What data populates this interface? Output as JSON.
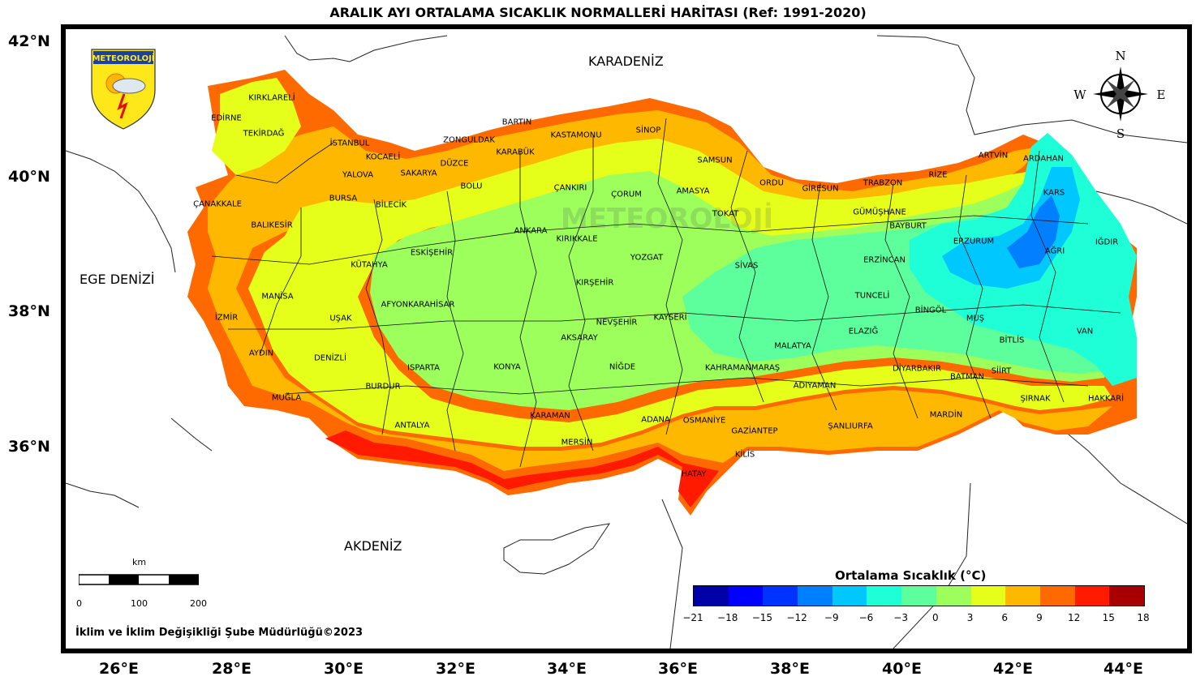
{
  "title": "ARALIK AYI ORTALAMA SICAKLIK NORMALLERİ HARİTASI (Ref: 1991-2020)",
  "logo_text": "METEOROLOJİ",
  "watermark_text": "METEOROLOJİ",
  "compass": {
    "n": "N",
    "s": "S",
    "e": "E",
    "w": "W"
  },
  "latitudes": [
    "42°N",
    "40°N",
    "38°N",
    "36°N"
  ],
  "longitudes": [
    "26°E",
    "28°E",
    "30°E",
    "32°E",
    "34°E",
    "36°E",
    "38°E",
    "40°E",
    "42°E",
    "44°E"
  ],
  "seas": {
    "black_sea": "KARADENİZ",
    "aegean": "EGE DENİZİ",
    "mediterranean": "AKDENİZ"
  },
  "provinces": [
    "KIRKLARELİ",
    "EDİRNE",
    "TEKİRDAĞ",
    "İSTANBUL",
    "KOCAELİ",
    "YALOVA",
    "SAKARYA",
    "ÇANAKKALE",
    "BURSA",
    "BİLECİK",
    "BALIKESİR",
    "ZONGULDAK",
    "BARTIN",
    "KARABÜK",
    "DÜZCE",
    "BOLU",
    "KASTAMONU",
    "SİNOP",
    "ÇANKIRI",
    "ÇORUM",
    "SAMSUN",
    "AMASYA",
    "ORDU",
    "GİRESUN",
    "TOKAT",
    "TRABZON",
    "RİZE",
    "ARTVİN",
    "ARDAHAN",
    "KARS",
    "GÜMÜŞHANE",
    "BAYBURT",
    "ERZURUM",
    "IĞDIR",
    "AĞRI",
    "ERZİNCAN",
    "SİVAS",
    "YOZGAT",
    "KIRIKKALE",
    "ANKARA",
    "ESKİŞEHİR",
    "KÜTAHYA",
    "MANİSA",
    "İZMİR",
    "UŞAK",
    "AFYONKARAHİSAR",
    "KIRŞEHİR",
    "NEVŞEHİR",
    "KAYSERİ",
    "AKSARAY",
    "AYDIN",
    "DENİZLİ",
    "ISPARTA",
    "BURDUR",
    "KONYA",
    "NİĞDE",
    "MUĞLA",
    "ANTALYA",
    "KARAMAN",
    "MERSİN",
    "ADANA",
    "OSMANİYE",
    "HATAY",
    "GAZİANTEP",
    "KİLİS",
    "KAHRAMANMARAŞ",
    "MALATYA",
    "ADIYAMAN",
    "ŞANLIURFA",
    "ELAZIĞ",
    "TUNCELİ",
    "BİNGÖL",
    "MUŞ",
    "DİYARBAKIR",
    "BATMAN",
    "SİİRT",
    "MARDİN",
    "ŞIRNAK",
    "HAKKARİ",
    "BİTLİS",
    "VAN"
  ],
  "legend": {
    "title": "Ortalama Sıcaklık (°C)",
    "ticks": [
      "−21",
      "−18",
      "−15",
      "−12",
      "−9",
      "−6",
      "−3",
      "0",
      "3",
      "6",
      "9",
      "12",
      "15",
      "18"
    ],
    "colors": [
      "#0000a8",
      "#0000ff",
      "#0033ff",
      "#0080ff",
      "#00c8ff",
      "#1effd8",
      "#5cff9c",
      "#9cff5c",
      "#e5ff1a",
      "#ffb800",
      "#ff6a00",
      "#ff1a00",
      "#a80000"
    ]
  },
  "scale_bar": {
    "unit": "km",
    "ticks": [
      "0",
      "100",
      "200"
    ]
  },
  "credit": "İklim ve İklim Değişikliği Şube Müdürlüğü©2023"
}
